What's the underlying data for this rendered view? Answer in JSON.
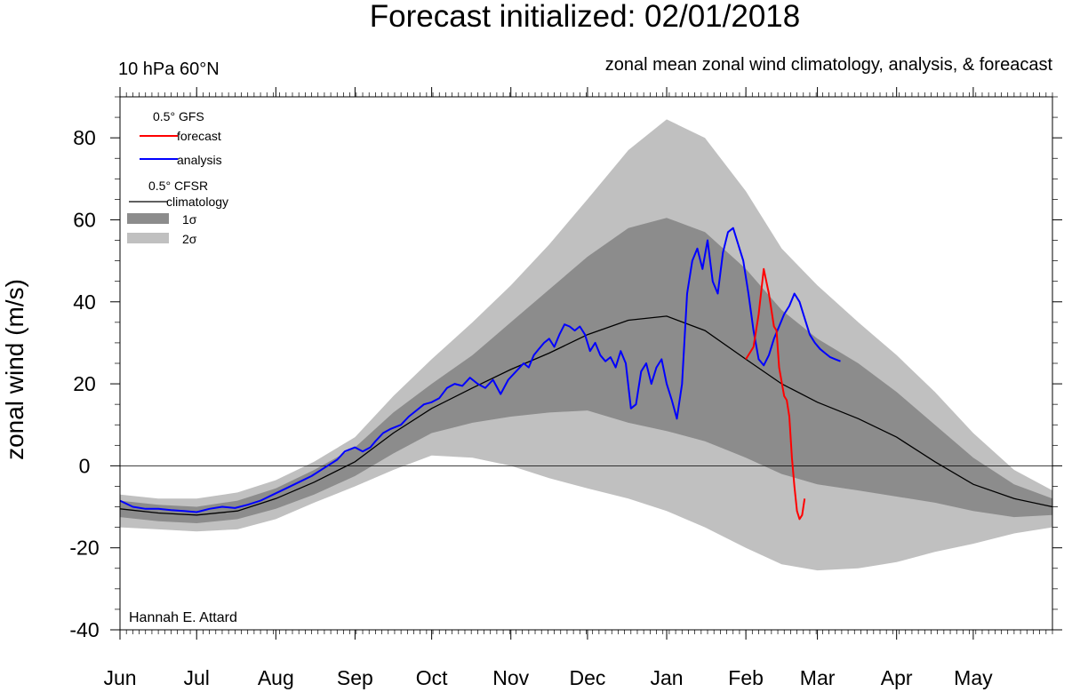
{
  "chart_data": {
    "type": "area",
    "title": "Forecast initialized: 02/01/2018",
    "subtitle_left": "10 hPa 60°N",
    "subtitle_right": "zonal mean zonal wind climatology, analysis, & foreacast",
    "ylabel": "zonal wind (m/s)",
    "credit": "Hannah E. Attard",
    "ylim": [
      -40,
      90
    ],
    "xlim": [
      0,
      365
    ],
    "y_ticks": [
      "80",
      "60",
      "40",
      "20",
      "0",
      "-20",
      "-40"
    ],
    "y_tick_values": [
      80,
      60,
      40,
      20,
      0,
      -20,
      -40
    ],
    "x_tick_labels": [
      "Jun",
      "Jul",
      "Aug",
      "Sep",
      "Oct",
      "Nov",
      "Dec",
      "Jan",
      "Feb",
      "Mar",
      "Apr",
      "May"
    ],
    "x_tick_days": [
      0,
      30,
      61,
      92,
      122,
      153,
      183,
      214,
      245,
      273,
      304,
      334
    ],
    "legend": {
      "gfs_header": "0.5°  GFS",
      "forecast": "forecast",
      "analysis": "analysis",
      "cfsr_header": "0.5° CFSR",
      "climatology": "climatology",
      "sigma1": "1σ",
      "sigma2": "2σ"
    },
    "colors": {
      "forecast": "#ff0000",
      "analysis": "#0000ff",
      "climatology": "#000000",
      "sigma1": "#8c8c8c",
      "sigma2": "#c0c0c0"
    },
    "climatology": {
      "day": [
        0,
        15,
        30,
        46,
        61,
        76,
        92,
        107,
        122,
        138,
        153,
        168,
        183,
        199,
        214,
        229,
        245,
        259,
        273,
        289,
        304,
        319,
        334,
        350,
        365
      ],
      "mean": [
        -10.5,
        -11.5,
        -12,
        -11,
        -8,
        -4,
        1,
        8,
        14,
        19,
        23.5,
        27.5,
        32,
        35.5,
        36.5,
        33,
        26,
        20,
        15.5,
        11.5,
        7,
        1,
        -4.5,
        -8,
        -10
      ],
      "sigma1_upper": [
        -8.5,
        -9.5,
        -10,
        -8.5,
        -5.5,
        -1,
        4.5,
        13,
        20,
        27,
        35,
        43,
        51,
        58,
        60.5,
        57,
        48,
        38,
        31,
        25,
        18,
        10,
        2,
        -4.5,
        -8
      ],
      "sigma1_lower": [
        -12.5,
        -13.5,
        -14,
        -13,
        -10.5,
        -7,
        -2.5,
        3,
        8,
        10.5,
        12,
        13,
        13.5,
        10.5,
        8.5,
        6,
        2,
        -2,
        -4.5,
        -6,
        -7.5,
        -9,
        -11,
        -12.5,
        -12
      ],
      "sigma2_upper": [
        -7,
        -8,
        -8,
        -6.5,
        -3.5,
        1,
        7,
        17,
        26,
        35,
        44,
        54,
        65,
        77,
        84.5,
        80,
        67,
        53,
        44,
        35,
        27,
        18,
        8,
        -1,
        -6
      ],
      "sigma2_lower": [
        -15,
        -15.5,
        -16,
        -15.5,
        -13,
        -9,
        -5,
        -1,
        2.5,
        2,
        0,
        -3,
        -5.5,
        -8,
        -11,
        -15,
        -20,
        -24,
        -25.5,
        -25,
        -23.5,
        -21,
        -19,
        -16.5,
        -15
      ]
    },
    "series": [
      {
        "name": "analysis",
        "day": [
          0,
          5,
          10,
          15,
          20,
          25,
          30,
          35,
          40,
          45,
          50,
          55,
          60,
          65,
          70,
          75,
          80,
          85,
          88,
          92,
          95,
          98,
          100,
          103,
          106,
          110,
          113,
          116,
          119,
          122,
          125,
          128,
          131,
          134,
          137,
          140,
          143,
          146,
          149,
          152,
          155,
          158,
          160,
          162,
          164,
          166,
          168,
          170,
          172,
          174,
          176,
          178,
          180,
          182,
          184,
          186,
          188,
          190,
          192,
          194,
          196,
          198,
          200,
          202,
          204,
          206,
          208,
          210,
          212,
          214,
          216,
          218,
          220,
          222,
          224,
          226,
          228,
          230,
          232,
          234,
          236,
          238,
          240,
          242
        ],
        "values": [
          -8.5,
          -10,
          -10.5,
          -10.5,
          -10.8,
          -11,
          -11.3,
          -10.5,
          -10,
          -10.3,
          -9.5,
          -8.5,
          -7,
          -5.5,
          -4,
          -2.5,
          -0.5,
          1.5,
          3.5,
          4.5,
          3.5,
          4.5,
          6,
          8,
          9,
          10,
          12,
          13.5,
          15,
          15.5,
          16.5,
          19,
          20,
          19.5,
          21.5,
          20,
          19,
          21,
          17.5,
          21,
          23,
          25,
          24,
          27,
          28.5,
          30,
          31,
          29,
          32,
          34.5,
          34,
          33,
          34,
          32,
          28,
          30,
          27,
          25.5,
          26.5,
          24,
          28,
          25,
          14,
          15,
          23,
          25,
          20,
          24,
          26,
          20,
          16,
          11.5,
          20,
          42,
          50,
          53,
          48,
          55,
          45,
          42,
          52,
          57,
          58,
          54
        ]
      },
      {
        "name": "analysis_cont",
        "day": [
          242,
          244,
          246,
          248,
          250,
          252,
          254,
          256,
          258,
          260,
          262,
          264,
          266,
          268,
          270,
          272,
          274,
          276,
          278,
          280,
          282
        ],
        "values": [
          54,
          50,
          42,
          33,
          26,
          24.5,
          27,
          31,
          34,
          37,
          39,
          42,
          40,
          36,
          32,
          30,
          28.5,
          27.5,
          26.5,
          26,
          25.5
        ]
      },
      {
        "name": "forecast",
        "day": [
          245,
          248,
          250,
          252,
          254,
          256,
          257,
          258,
          260,
          261,
          262,
          263,
          264,
          265,
          266,
          267,
          268
        ],
        "values": [
          26,
          29,
          37,
          48,
          42,
          34,
          33,
          24,
          17,
          16,
          12,
          2,
          -5,
          -11,
          -13,
          -12,
          -8
        ]
      }
    ]
  }
}
